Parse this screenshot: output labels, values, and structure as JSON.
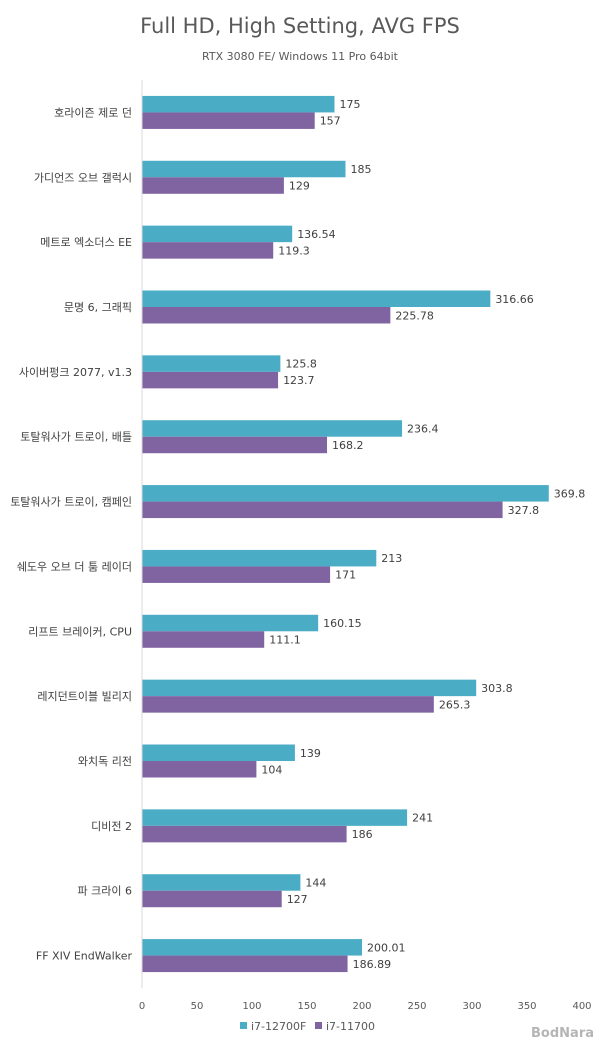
{
  "watermark": "BodNara",
  "chart_data": {
    "type": "bar",
    "orientation": "horizontal",
    "title": "Full HD, High Setting, AVG FPS",
    "subtitle": "RTX 3080 FE/ Windows 11 Pro 64bit",
    "categories": [
      "호라이즌 제로 던",
      "가디언즈 오브 갤럭시",
      "메트로 엑소더스 EE",
      "문명 6, 그래픽",
      "사이버펑크 2077, v1.3",
      "토탈워사가 트로이, 배틀",
      "토탈워사가 트로이, 캠페인",
      "쉐도우 오브 더 툼 레이더",
      "리프트 브레이커, CPU",
      "레지던트이블 빌리지",
      "와치독 리전",
      "디비전 2",
      "파 크라이 6",
      "FF XIV EndWalker"
    ],
    "series": [
      {
        "name": "i7-12700F",
        "color": "#4bacc6",
        "values": [
          175,
          185,
          136.54,
          316.66,
          125.8,
          236.4,
          369.8,
          213,
          160.15,
          303.8,
          139,
          241,
          144,
          200.01
        ],
        "labels": [
          "175",
          "185",
          "136.54",
          "316.66",
          "125.8",
          "236.4",
          "369.8",
          "213",
          "160.15",
          "303.8",
          "139",
          "241",
          "144",
          "200.01"
        ]
      },
      {
        "name": "i7-11700",
        "color": "#8064a2",
        "values": [
          157,
          129,
          119.3,
          225.78,
          123.7,
          168.2,
          327.8,
          171,
          111.1,
          265.3,
          104,
          186,
          127,
          186.89
        ],
        "labels": [
          "157",
          "129",
          "119.3",
          "225.78",
          "123.7",
          "168.2",
          "327.8",
          "171",
          "111.1",
          "265.3",
          "104",
          "186",
          "127",
          "186.89"
        ]
      }
    ],
    "xlim": [
      0,
      400
    ],
    "xticks": [
      "0",
      "50",
      "100",
      "150",
      "200",
      "250",
      "300",
      "350",
      "400"
    ],
    "grid": false,
    "legend_position": "bottom-center"
  }
}
